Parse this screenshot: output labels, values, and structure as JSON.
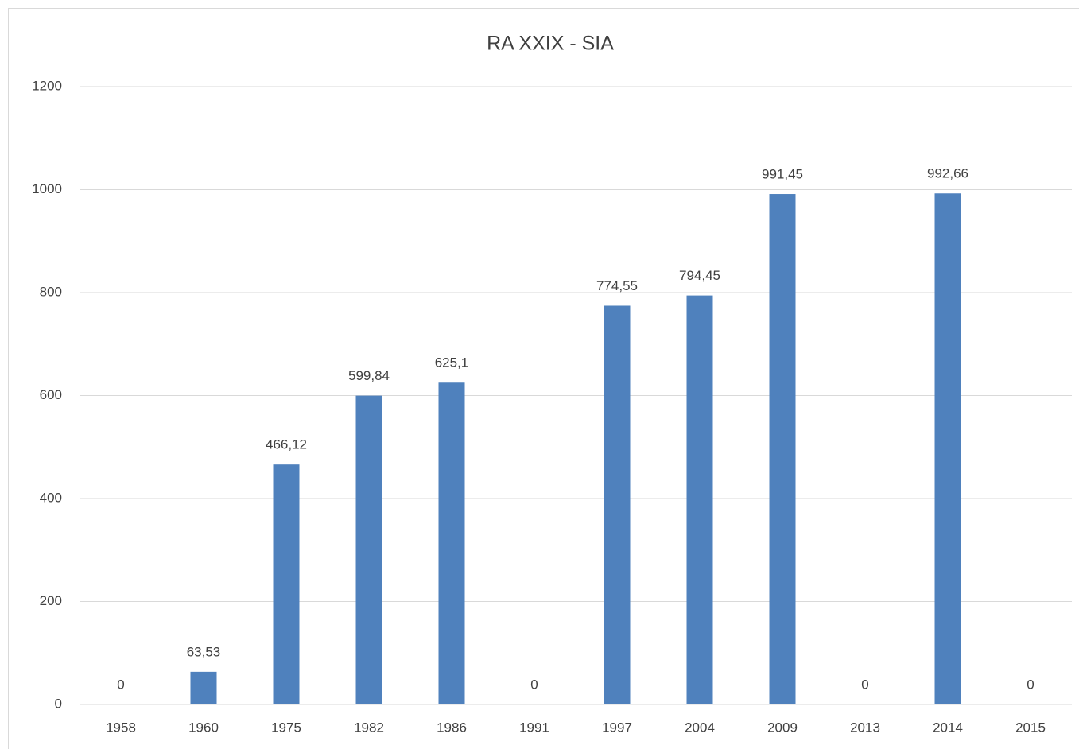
{
  "chart_data": {
    "type": "bar",
    "title": "RA XXIX - SIA",
    "categories": [
      "1958",
      "1960",
      "1975",
      "1982",
      "1986",
      "1991",
      "1997",
      "2004",
      "2009",
      "2013",
      "2014",
      "2015"
    ],
    "values": [
      0,
      63.53,
      466.12,
      599.84,
      625.1,
      0,
      774.55,
      794.45,
      991.45,
      0,
      992.66,
      0
    ],
    "value_labels": [
      "0",
      "63,53",
      "466,12",
      "599,84",
      "625,1",
      "0",
      "774,55",
      "794,45",
      "991,45",
      "0",
      "992,66",
      "0"
    ],
    "color": "#4f81bd",
    "ylim": [
      0,
      1200
    ],
    "yticks": [
      0,
      200,
      400,
      600,
      800,
      1000,
      1200
    ],
    "grid": true
  }
}
